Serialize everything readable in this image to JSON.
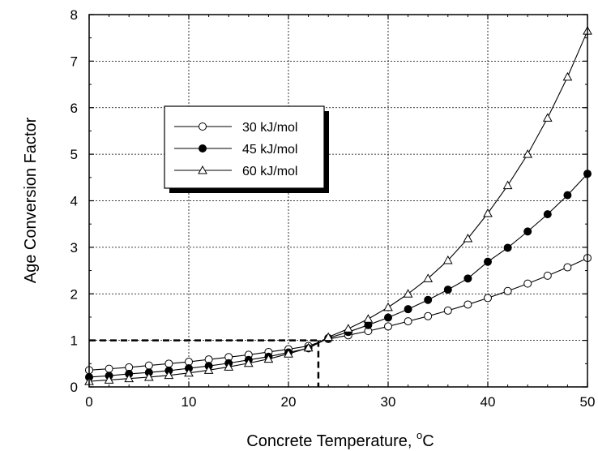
{
  "chart_data": {
    "type": "line",
    "xlabel": "Concrete Temperature, ",
    "xlabel_sup": "o",
    "xlabel_unit": "C",
    "ylabel": "Age Conversion Factor",
    "xlim": [
      0,
      50
    ],
    "ylim": [
      0,
      8
    ],
    "x_ticks": [
      "0",
      "10",
      "20",
      "30",
      "40",
      "50"
    ],
    "y_ticks": [
      "0",
      "1",
      "2",
      "3",
      "4",
      "5",
      "6",
      "7",
      "8"
    ],
    "grid": true,
    "legend_position": "upper-left",
    "x": [
      0,
      2,
      4,
      6,
      8,
      10,
      12,
      14,
      16,
      18,
      20,
      22,
      24,
      26,
      28,
      30,
      32,
      34,
      36,
      38,
      40,
      42,
      44,
      46,
      48,
      50
    ],
    "series": [
      {
        "name": "30 kJ/mol",
        "marker": "circle-open",
        "values": [
          0.36,
          0.39,
          0.42,
          0.46,
          0.5,
          0.54,
          0.59,
          0.64,
          0.69,
          0.75,
          0.81,
          0.88,
          1.03,
          1.11,
          1.2,
          1.3,
          1.41,
          1.52,
          1.64,
          1.77,
          1.91,
          2.06,
          2.22,
          2.39,
          2.57,
          2.77
        ]
      },
      {
        "name": "45 kJ/mol",
        "marker": "circle-filled",
        "values": [
          0.21,
          0.24,
          0.28,
          0.31,
          0.35,
          0.4,
          0.45,
          0.51,
          0.58,
          0.65,
          0.74,
          0.83,
          1.05,
          1.18,
          1.33,
          1.49,
          1.67,
          1.87,
          2.09,
          2.33,
          2.69,
          2.99,
          3.34,
          3.71,
          4.12,
          4.58
        ]
      },
      {
        "name": "60 kJ/mol",
        "marker": "triangle-open",
        "values": [
          0.12,
          0.15,
          0.18,
          0.21,
          0.25,
          0.3,
          0.36,
          0.43,
          0.51,
          0.6,
          0.71,
          0.84,
          1.07,
          1.25,
          1.46,
          1.71,
          2.0,
          2.33,
          2.72,
          3.19,
          3.73,
          4.33,
          5.0,
          5.78,
          6.66,
          7.65
        ]
      }
    ],
    "reference_lines": {
      "x": 23,
      "y": 1
    }
  }
}
